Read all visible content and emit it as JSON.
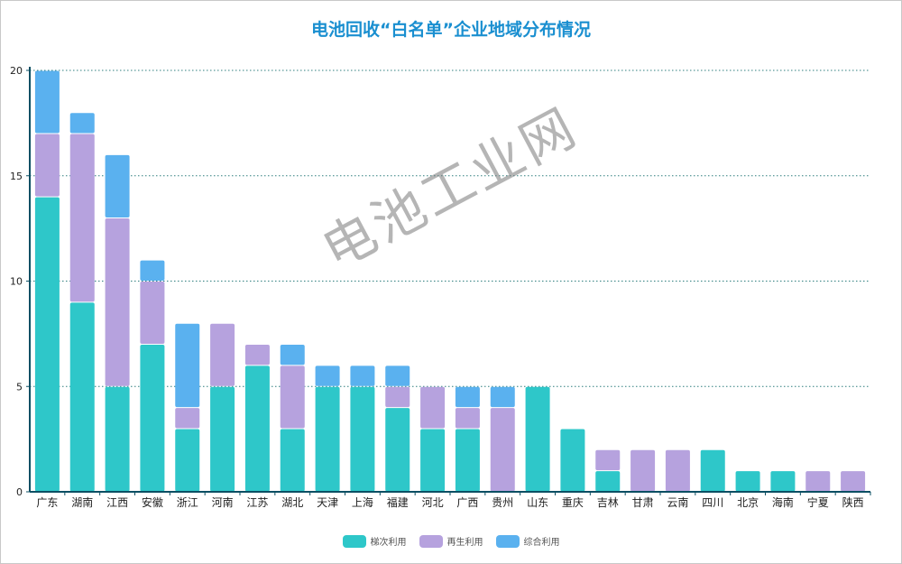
{
  "chart_data": {
    "type": "bar",
    "stacked": true,
    "title": "电池回收“白名单”企业地域分布情况",
    "xlabel": "",
    "ylabel": "",
    "ylim": [
      0,
      20
    ],
    "yticks": [
      0,
      5,
      10,
      15,
      20
    ],
    "grid": true,
    "legend_position": "bottom-center",
    "categories": [
      "广东",
      "湖南",
      "江西",
      "安徽",
      "浙江",
      "河南",
      "江苏",
      "湖北",
      "天津",
      "上海",
      "福建",
      "河北",
      "广西",
      "贵州",
      "山东",
      "重庆",
      "吉林",
      "甘肃",
      "云南",
      "四川",
      "北京",
      "海南",
      "宁夏",
      "陕西"
    ],
    "series": [
      {
        "name": "梯次利用",
        "color": "#2ec7c9",
        "values": [
          14,
          9,
          5,
          7,
          3,
          5,
          6,
          3,
          5,
          5,
          4,
          3,
          3,
          0,
          5,
          3,
          1,
          0,
          0,
          2,
          1,
          1,
          0,
          0
        ]
      },
      {
        "name": "再生利用",
        "color": "#b6a2de",
        "values": [
          3,
          8,
          8,
          3,
          1,
          3,
          1,
          3,
          0,
          0,
          1,
          2,
          1,
          4,
          0,
          0,
          1,
          2,
          2,
          0,
          0,
          0,
          1,
          1
        ]
      },
      {
        "name": "综合利用",
        "color": "#5ab1ef",
        "values": [
          3,
          1,
          3,
          1,
          4,
          0,
          0,
          1,
          1,
          1,
          1,
          0,
          1,
          1,
          0,
          0,
          0,
          0,
          0,
          0,
          0,
          0,
          0,
          0
        ]
      }
    ]
  },
  "watermark": "电池工业网"
}
